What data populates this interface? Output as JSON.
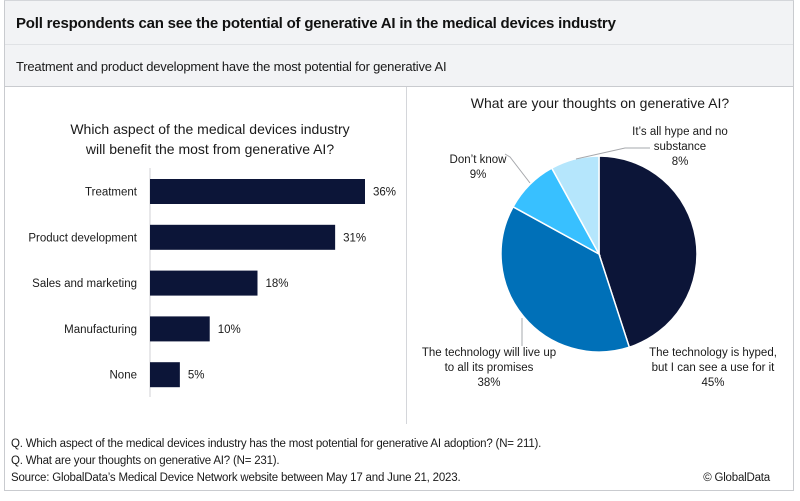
{
  "header": {
    "title": "Poll respondents can see the potential of generative AI in the medical devices industry",
    "subtitle": "Treatment and product development have the most potential for generative AI"
  },
  "chart_data": [
    {
      "type": "bar",
      "orientation": "horizontal",
      "title": "Which aspect of the medical devices industry will benefit the most from generative AI?",
      "title_lines": [
        "Which aspect of the medical devices industry",
        "will benefit the most from generative AI?"
      ],
      "categories": [
        "Treatment",
        "Product development",
        "Sales and marketing",
        "Manufacturing",
        "None"
      ],
      "values": [
        36,
        31,
        18,
        10,
        5
      ],
      "value_labels": [
        "36%",
        "31%",
        "18%",
        "10%",
        "5%"
      ],
      "unit": "%",
      "xlim": [
        0,
        36
      ],
      "grid": false,
      "color": "#0c1538"
    },
    {
      "type": "pie",
      "title": "What are your thoughts on generative AI?",
      "slices": [
        {
          "label": "The technology is hyped, but I can see a use for it",
          "label_lines": [
            "The technology is hyped,",
            "but I can see a use for it"
          ],
          "value": 45,
          "value_label": "45%",
          "color": "#0c1538"
        },
        {
          "label": "The technology will live up to all its promises",
          "label_lines": [
            "The technology will live up",
            "to all its promises"
          ],
          "value": 38,
          "value_label": "38%",
          "color": "#0070b8"
        },
        {
          "label": "Don’t know",
          "label_lines": [
            "Don’t know"
          ],
          "value": 9,
          "value_label": "9%",
          "color": "#38c0ff"
        },
        {
          "label": "It’s all hype and no substance",
          "label_lines": [
            "It’s all hype and no",
            "substance"
          ],
          "value": 8,
          "value_label": "8%",
          "color": "#b5e6fc"
        }
      ],
      "start": "12 o'clock",
      "direction": "clockwise"
    }
  ],
  "footer": {
    "notes": [
      "Q. Which aspect of the medical devices industry has the most potential for generative AI adoption? (N= 211).",
      "Q. What are your thoughts on generative AI? (N= 231).",
      "Source: GlobalData’s Medical Device Network website between May 17 and June 21, 2023."
    ],
    "copyright": "© GlobalData"
  }
}
